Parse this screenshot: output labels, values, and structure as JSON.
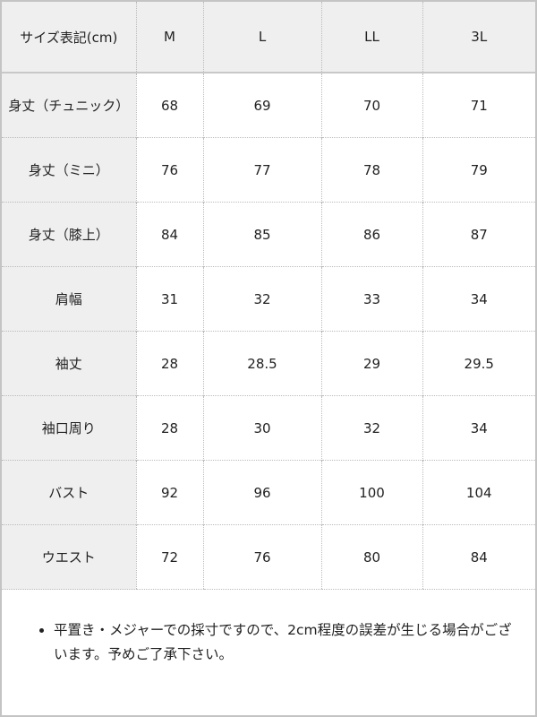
{
  "table": {
    "headers": [
      "サイズ表記(cm)",
      "M",
      "L",
      "LL",
      "3L"
    ],
    "rows": [
      [
        "身丈（チュニック）",
        "68",
        "69",
        "70",
        "71"
      ],
      [
        "身丈（ミニ）",
        "76",
        "77",
        "78",
        "79"
      ],
      [
        "身丈（膝上）",
        "84",
        "85",
        "86",
        "87"
      ],
      [
        "肩幅",
        "31",
        "32",
        "33",
        "34"
      ],
      [
        "袖丈",
        "28",
        "28.5",
        "29",
        "29.5"
      ],
      [
        "袖口周り",
        "28",
        "30",
        "32",
        "34"
      ],
      [
        "バスト",
        "92",
        "96",
        "100",
        "104"
      ],
      [
        "ウエスト",
        "72",
        "76",
        "80",
        "84"
      ]
    ]
  },
  "note": "平置き・メジャーでの採寸ですので、2cm程度の誤差が生じる場合がございます。予めご了承下さい。"
}
